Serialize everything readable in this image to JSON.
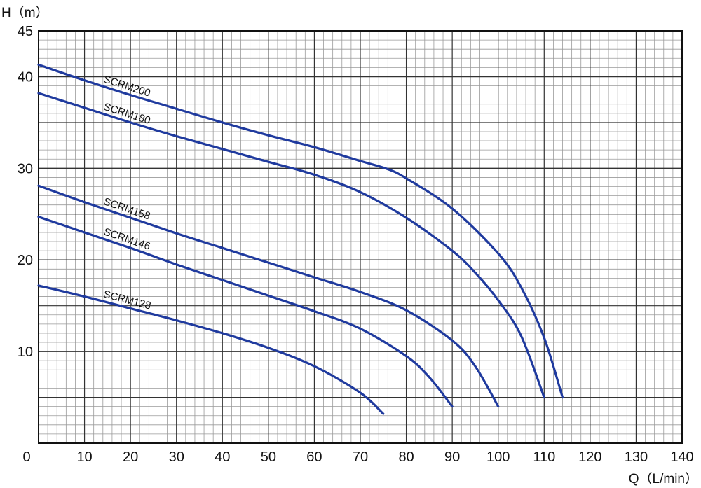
{
  "chart_data": {
    "type": "line",
    "title": "",
    "ylabel": "H（m）",
    "xlabel": "Q（L/min）",
    "xlim": [
      0,
      140
    ],
    "ylim": [
      0,
      45
    ],
    "grid": true,
    "x_ticks": [
      "0",
      "10",
      "20",
      "30",
      "40",
      "50",
      "60",
      "70",
      "80",
      "90",
      "100",
      "110",
      "120",
      "130",
      "140"
    ],
    "y_ticks": [
      "10",
      "20",
      "30",
      "40",
      "45"
    ],
    "colors": {
      "curve": "#1f3a9e",
      "grid": "#9a9a9a",
      "grid_major": "#333333"
    },
    "series": [
      {
        "name": "SCRM200",
        "points": [
          [
            0,
            41.3
          ],
          [
            10,
            39.6
          ],
          [
            20,
            38.0
          ],
          [
            30,
            36.5
          ],
          [
            40,
            35.0
          ],
          [
            50,
            33.6
          ],
          [
            60,
            32.3
          ],
          [
            70,
            30.8
          ],
          [
            76,
            29.9
          ],
          [
            80,
            28.9
          ],
          [
            90,
            25.6
          ],
          [
            100,
            20.7
          ],
          [
            105,
            17.0
          ],
          [
            110,
            11.5
          ],
          [
            114,
            5.0
          ]
        ]
      },
      {
        "name": "SCRM180",
        "points": [
          [
            0,
            38.2
          ],
          [
            10,
            36.6
          ],
          [
            20,
            35.0
          ],
          [
            30,
            33.5
          ],
          [
            40,
            32.1
          ],
          [
            50,
            30.7
          ],
          [
            60,
            29.3
          ],
          [
            70,
            27.4
          ],
          [
            80,
            24.6
          ],
          [
            90,
            21.0
          ],
          [
            95,
            18.6
          ],
          [
            100,
            15.6
          ],
          [
            105,
            11.7
          ],
          [
            110,
            5.0
          ]
        ]
      },
      {
        "name": "SCRM158",
        "points": [
          [
            0,
            28.1
          ],
          [
            10,
            26.3
          ],
          [
            20,
            24.6
          ],
          [
            30,
            22.9
          ],
          [
            40,
            21.3
          ],
          [
            50,
            19.7
          ],
          [
            60,
            18.1
          ],
          [
            70,
            16.5
          ],
          [
            80,
            14.5
          ],
          [
            90,
            11.2
          ],
          [
            95,
            8.4
          ],
          [
            100,
            4.0
          ]
        ]
      },
      {
        "name": "SCRM146",
        "points": [
          [
            0,
            24.7
          ],
          [
            10,
            23.0
          ],
          [
            20,
            21.3
          ],
          [
            30,
            19.5
          ],
          [
            40,
            17.8
          ],
          [
            50,
            16.1
          ],
          [
            60,
            14.4
          ],
          [
            70,
            12.5
          ],
          [
            80,
            9.5
          ],
          [
            85,
            7.2
          ],
          [
            90,
            4.0
          ]
        ]
      },
      {
        "name": "SCRM128",
        "points": [
          [
            0,
            17.2
          ],
          [
            10,
            16.0
          ],
          [
            20,
            14.7
          ],
          [
            30,
            13.4
          ],
          [
            40,
            12.0
          ],
          [
            50,
            10.4
          ],
          [
            60,
            8.4
          ],
          [
            70,
            5.5
          ],
          [
            75,
            3.2
          ]
        ]
      }
    ]
  }
}
